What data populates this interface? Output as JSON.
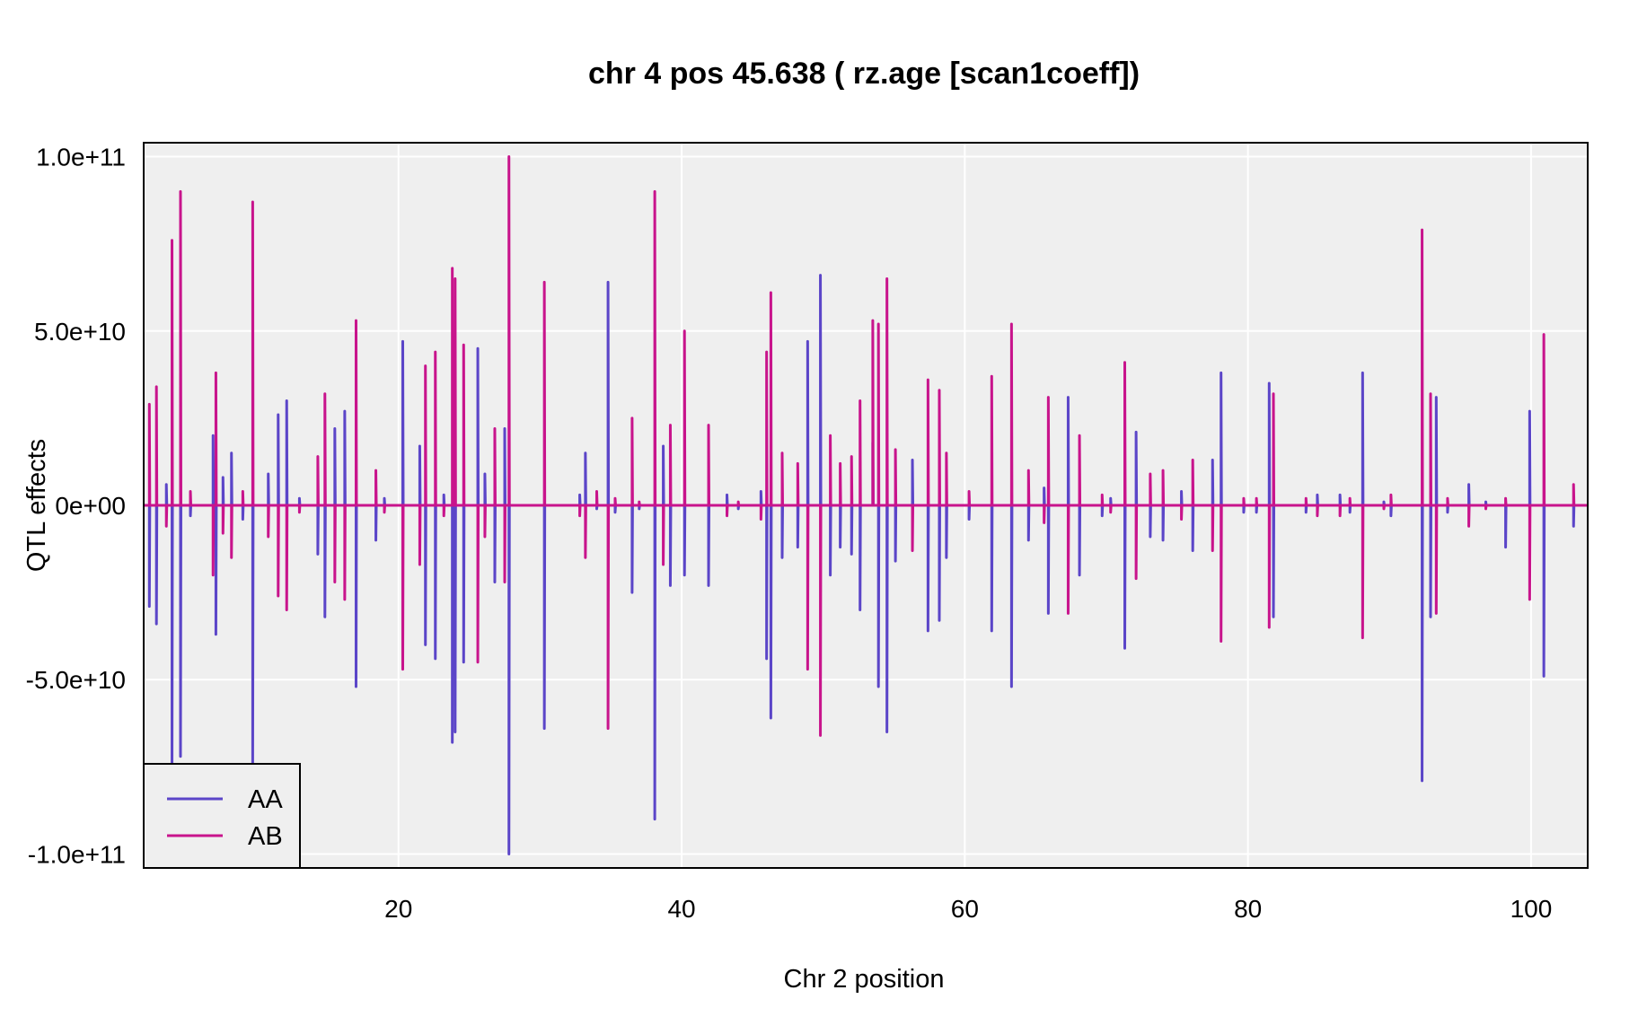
{
  "chart_data": {
    "type": "line",
    "title": "chr 4 pos 45.638 ( rz.age  [scan1coeff])",
    "xlabel": "Chr 2 position",
    "ylabel": "QTL effects",
    "xlim": [
      2,
      104
    ],
    "ylim": [
      -104000000000,
      104000000000
    ],
    "x_ticks": [
      20,
      40,
      60,
      80,
      100
    ],
    "x_tick_labels": [
      "20",
      "40",
      "60",
      "80",
      "100"
    ],
    "y_ticks": [
      100000000000,
      50000000000,
      0,
      -50000000000,
      -100000000000
    ],
    "y_tick_labels": [
      "1.0e+11",
      "5.0e+10",
      "0e+00",
      "-5.0e+10",
      "-1.0e+11"
    ],
    "grid": true,
    "background": "#efefef",
    "legend": {
      "position": "bottom-left",
      "entries": [
        "AA",
        "AB"
      ]
    },
    "series": [
      {
        "name": "AA",
        "color": "#5b45c8",
        "spikes": [
          {
            "x": 2.4,
            "y": -29000000000
          },
          {
            "x": 2.9,
            "y": -34000000000
          },
          {
            "x": 3.6,
            "y": 6000000000
          },
          {
            "x": 4.0,
            "y": -76000000000
          },
          {
            "x": 4.6,
            "y": -72000000000
          },
          {
            "x": 5.3,
            "y": -3000000000
          },
          {
            "x": 6.9,
            "y": 20000000000
          },
          {
            "x": 7.1,
            "y": -37000000000
          },
          {
            "x": 7.6,
            "y": 8000000000
          },
          {
            "x": 8.2,
            "y": 15000000000
          },
          {
            "x": 9.0,
            "y": -4000000000
          },
          {
            "x": 9.7,
            "y": -74000000000
          },
          {
            "x": 10.8,
            "y": 9000000000
          },
          {
            "x": 11.5,
            "y": 26000000000
          },
          {
            "x": 12.1,
            "y": 30000000000
          },
          {
            "x": 13.0,
            "y": 2000000000
          },
          {
            "x": 14.3,
            "y": -14000000000
          },
          {
            "x": 14.8,
            "y": -32000000000
          },
          {
            "x": 15.5,
            "y": 22000000000
          },
          {
            "x": 16.2,
            "y": 27000000000
          },
          {
            "x": 17.0,
            "y": -52000000000
          },
          {
            "x": 18.4,
            "y": -10000000000
          },
          {
            "x": 19.0,
            "y": 2000000000
          },
          {
            "x": 20.3,
            "y": 47000000000
          },
          {
            "x": 21.5,
            "y": 17000000000
          },
          {
            "x": 21.9,
            "y": -40000000000
          },
          {
            "x": 22.6,
            "y": -44000000000
          },
          {
            "x": 23.2,
            "y": 3000000000
          },
          {
            "x": 23.8,
            "y": -68000000000
          },
          {
            "x": 24.0,
            "y": -65000000000
          },
          {
            "x": 24.6,
            "y": -45000000000
          },
          {
            "x": 25.6,
            "y": 45000000000
          },
          {
            "x": 26.1,
            "y": 9000000000
          },
          {
            "x": 26.8,
            "y": -22000000000
          },
          {
            "x": 27.5,
            "y": 22000000000
          },
          {
            "x": 27.8,
            "y": -100000000000
          },
          {
            "x": 30.3,
            "y": -64000000000
          },
          {
            "x": 32.8,
            "y": 3000000000
          },
          {
            "x": 33.2,
            "y": 15000000000
          },
          {
            "x": 34.0,
            "y": -1000000000
          },
          {
            "x": 34.8,
            "y": 64000000000
          },
          {
            "x": 35.3,
            "y": -2000000000
          },
          {
            "x": 36.5,
            "y": -25000000000
          },
          {
            "x": 37.0,
            "y": -1000000000
          },
          {
            "x": 38.1,
            "y": -90000000000
          },
          {
            "x": 38.7,
            "y": 17000000000
          },
          {
            "x": 39.2,
            "y": -23000000000
          },
          {
            "x": 40.2,
            "y": -20000000000
          },
          {
            "x": 41.9,
            "y": -23000000000
          },
          {
            "x": 43.2,
            "y": 3000000000
          },
          {
            "x": 44.0,
            "y": -1000000000
          },
          {
            "x": 45.6,
            "y": 4000000000
          },
          {
            "x": 46.0,
            "y": -44000000000
          },
          {
            "x": 46.3,
            "y": -61000000000
          },
          {
            "x": 47.1,
            "y": -15000000000
          },
          {
            "x": 48.2,
            "y": -12000000000
          },
          {
            "x": 48.9,
            "y": 47000000000
          },
          {
            "x": 49.8,
            "y": 66000000000
          },
          {
            "x": 50.5,
            "y": -20000000000
          },
          {
            "x": 51.2,
            "y": -12000000000
          },
          {
            "x": 52.0,
            "y": -14000000000
          },
          {
            "x": 52.6,
            "y": -30000000000
          },
          {
            "x": 53.5,
            "y": 18000000000
          },
          {
            "x": 53.9,
            "y": -52000000000
          },
          {
            "x": 54.5,
            "y": -65000000000
          },
          {
            "x": 55.1,
            "y": -16000000000
          },
          {
            "x": 56.3,
            "y": 13000000000
          },
          {
            "x": 57.4,
            "y": -36000000000
          },
          {
            "x": 58.2,
            "y": -33000000000
          },
          {
            "x": 58.7,
            "y": -15000000000
          },
          {
            "x": 60.3,
            "y": -4000000000
          },
          {
            "x": 61.9,
            "y": -36000000000
          },
          {
            "x": 63.3,
            "y": -52000000000
          },
          {
            "x": 64.5,
            "y": -10000000000
          },
          {
            "x": 65.6,
            "y": 5000000000
          },
          {
            "x": 65.9,
            "y": -31000000000
          },
          {
            "x": 67.3,
            "y": 31000000000
          },
          {
            "x": 68.1,
            "y": -20000000000
          },
          {
            "x": 69.7,
            "y": -3000000000
          },
          {
            "x": 70.3,
            "y": 2000000000
          },
          {
            "x": 71.3,
            "y": -41000000000
          },
          {
            "x": 72.1,
            "y": 21000000000
          },
          {
            "x": 73.1,
            "y": -9000000000
          },
          {
            "x": 74.0,
            "y": -10000000000
          },
          {
            "x": 75.3,
            "y": 4000000000
          },
          {
            "x": 76.1,
            "y": -13000000000
          },
          {
            "x": 77.5,
            "y": 13000000000
          },
          {
            "x": 78.1,
            "y": 38000000000
          },
          {
            "x": 79.7,
            "y": -2000000000
          },
          {
            "x": 80.6,
            "y": -2000000000
          },
          {
            "x": 81.5,
            "y": 35000000000
          },
          {
            "x": 81.8,
            "y": -32000000000
          },
          {
            "x": 84.1,
            "y": -2000000000
          },
          {
            "x": 84.9,
            "y": 3000000000
          },
          {
            "x": 86.5,
            "y": 3000000000
          },
          {
            "x": 87.2,
            "y": -2000000000
          },
          {
            "x": 88.1,
            "y": 38000000000
          },
          {
            "x": 89.6,
            "y": 1000000000
          },
          {
            "x": 90.1,
            "y": -3000000000
          },
          {
            "x": 92.3,
            "y": -79000000000
          },
          {
            "x": 92.9,
            "y": -32000000000
          },
          {
            "x": 93.3,
            "y": 31000000000
          },
          {
            "x": 94.1,
            "y": -2000000000
          },
          {
            "x": 95.6,
            "y": 6000000000
          },
          {
            "x": 96.8,
            "y": 1000000000
          },
          {
            "x": 98.2,
            "y": -12000000000
          },
          {
            "x": 99.9,
            "y": 27000000000
          },
          {
            "x": 100.9,
            "y": -49000000000
          },
          {
            "x": 103.0,
            "y": -6000000000
          }
        ]
      },
      {
        "name": "AB",
        "color": "#c8148c",
        "spikes": [
          {
            "x": 2.4,
            "y": 29000000000
          },
          {
            "x": 2.9,
            "y": 34000000000
          },
          {
            "x": 3.6,
            "y": -6000000000
          },
          {
            "x": 4.0,
            "y": 76000000000
          },
          {
            "x": 4.6,
            "y": 90000000000
          },
          {
            "x": 5.3,
            "y": 4000000000
          },
          {
            "x": 6.9,
            "y": -20000000000
          },
          {
            "x": 7.1,
            "y": 38000000000
          },
          {
            "x": 7.6,
            "y": -8000000000
          },
          {
            "x": 8.2,
            "y": -15000000000
          },
          {
            "x": 9.0,
            "y": 4000000000
          },
          {
            "x": 9.7,
            "y": 87000000000
          },
          {
            "x": 10.8,
            "y": -9000000000
          },
          {
            "x": 11.5,
            "y": -26000000000
          },
          {
            "x": 12.1,
            "y": -30000000000
          },
          {
            "x": 13.0,
            "y": -2000000000
          },
          {
            "x": 14.3,
            "y": 14000000000
          },
          {
            "x": 14.8,
            "y": 32000000000
          },
          {
            "x": 15.5,
            "y": -22000000000
          },
          {
            "x": 16.2,
            "y": -27000000000
          },
          {
            "x": 17.0,
            "y": 53000000000
          },
          {
            "x": 18.4,
            "y": 10000000000
          },
          {
            "x": 19.0,
            "y": -2000000000
          },
          {
            "x": 20.3,
            "y": -47000000000
          },
          {
            "x": 21.5,
            "y": -17000000000
          },
          {
            "x": 21.9,
            "y": 40000000000
          },
          {
            "x": 22.6,
            "y": 44000000000
          },
          {
            "x": 23.2,
            "y": -3000000000
          },
          {
            "x": 23.8,
            "y": 68000000000
          },
          {
            "x": 24.0,
            "y": 65000000000
          },
          {
            "x": 24.6,
            "y": 46000000000
          },
          {
            "x": 25.6,
            "y": -45000000000
          },
          {
            "x": 26.1,
            "y": -9000000000
          },
          {
            "x": 26.8,
            "y": 22000000000
          },
          {
            "x": 27.5,
            "y": -22000000000
          },
          {
            "x": 27.8,
            "y": 100000000000
          },
          {
            "x": 30.3,
            "y": 64000000000
          },
          {
            "x": 32.8,
            "y": -3000000000
          },
          {
            "x": 33.2,
            "y": -15000000000
          },
          {
            "x": 34.0,
            "y": 4000000000
          },
          {
            "x": 34.8,
            "y": -64000000000
          },
          {
            "x": 35.3,
            "y": 2000000000
          },
          {
            "x": 36.5,
            "y": 25000000000
          },
          {
            "x": 37.0,
            "y": 1000000000
          },
          {
            "x": 38.1,
            "y": 90000000000
          },
          {
            "x": 38.7,
            "y": -17000000000
          },
          {
            "x": 39.2,
            "y": 23000000000
          },
          {
            "x": 40.2,
            "y": 50000000000
          },
          {
            "x": 41.9,
            "y": 23000000000
          },
          {
            "x": 43.2,
            "y": -3000000000
          },
          {
            "x": 44.0,
            "y": 1000000000
          },
          {
            "x": 45.6,
            "y": -4000000000
          },
          {
            "x": 46.0,
            "y": 44000000000
          },
          {
            "x": 46.3,
            "y": 61000000000
          },
          {
            "x": 47.1,
            "y": 15000000000
          },
          {
            "x": 48.2,
            "y": 12000000000
          },
          {
            "x": 48.9,
            "y": -47000000000
          },
          {
            "x": 49.8,
            "y": -66000000000
          },
          {
            "x": 50.5,
            "y": 20000000000
          },
          {
            "x": 51.2,
            "y": 12000000000
          },
          {
            "x": 52.0,
            "y": 14000000000
          },
          {
            "x": 52.6,
            "y": 30000000000
          },
          {
            "x": 53.5,
            "y": 53000000000
          },
          {
            "x": 53.9,
            "y": 52000000000
          },
          {
            "x": 54.5,
            "y": 65000000000
          },
          {
            "x": 55.1,
            "y": 16000000000
          },
          {
            "x": 56.3,
            "y": -13000000000
          },
          {
            "x": 57.4,
            "y": 36000000000
          },
          {
            "x": 58.2,
            "y": 33000000000
          },
          {
            "x": 58.7,
            "y": 15000000000
          },
          {
            "x": 60.3,
            "y": 4000000000
          },
          {
            "x": 61.9,
            "y": 37000000000
          },
          {
            "x": 63.3,
            "y": 52000000000
          },
          {
            "x": 64.5,
            "y": 10000000000
          },
          {
            "x": 65.6,
            "y": -5000000000
          },
          {
            "x": 65.9,
            "y": 31000000000
          },
          {
            "x": 67.3,
            "y": -31000000000
          },
          {
            "x": 68.1,
            "y": 20000000000
          },
          {
            "x": 69.7,
            "y": 3000000000
          },
          {
            "x": 70.3,
            "y": -2000000000
          },
          {
            "x": 71.3,
            "y": 41000000000
          },
          {
            "x": 72.1,
            "y": -21000000000
          },
          {
            "x": 73.1,
            "y": 9000000000
          },
          {
            "x": 74.0,
            "y": 10000000000
          },
          {
            "x": 75.3,
            "y": -4000000000
          },
          {
            "x": 76.1,
            "y": 13000000000
          },
          {
            "x": 77.5,
            "y": -13000000000
          },
          {
            "x": 78.1,
            "y": -39000000000
          },
          {
            "x": 79.7,
            "y": 2000000000
          },
          {
            "x": 80.6,
            "y": 2000000000
          },
          {
            "x": 81.5,
            "y": -35000000000
          },
          {
            "x": 81.8,
            "y": 32000000000
          },
          {
            "x": 84.1,
            "y": 2000000000
          },
          {
            "x": 84.9,
            "y": -3000000000
          },
          {
            "x": 86.5,
            "y": -3000000000
          },
          {
            "x": 87.2,
            "y": 2000000000
          },
          {
            "x": 88.1,
            "y": -38000000000
          },
          {
            "x": 89.6,
            "y": -1000000000
          },
          {
            "x": 90.1,
            "y": 3000000000
          },
          {
            "x": 92.3,
            "y": 79000000000
          },
          {
            "x": 92.9,
            "y": 32000000000
          },
          {
            "x": 93.3,
            "y": -31000000000
          },
          {
            "x": 94.1,
            "y": 2000000000
          },
          {
            "x": 95.6,
            "y": -6000000000
          },
          {
            "x": 96.8,
            "y": -1000000000
          },
          {
            "x": 98.2,
            "y": 2000000000
          },
          {
            "x": 99.9,
            "y": -27000000000
          },
          {
            "x": 100.9,
            "y": 49000000000
          },
          {
            "x": 103.0,
            "y": 6000000000
          }
        ]
      }
    ]
  }
}
